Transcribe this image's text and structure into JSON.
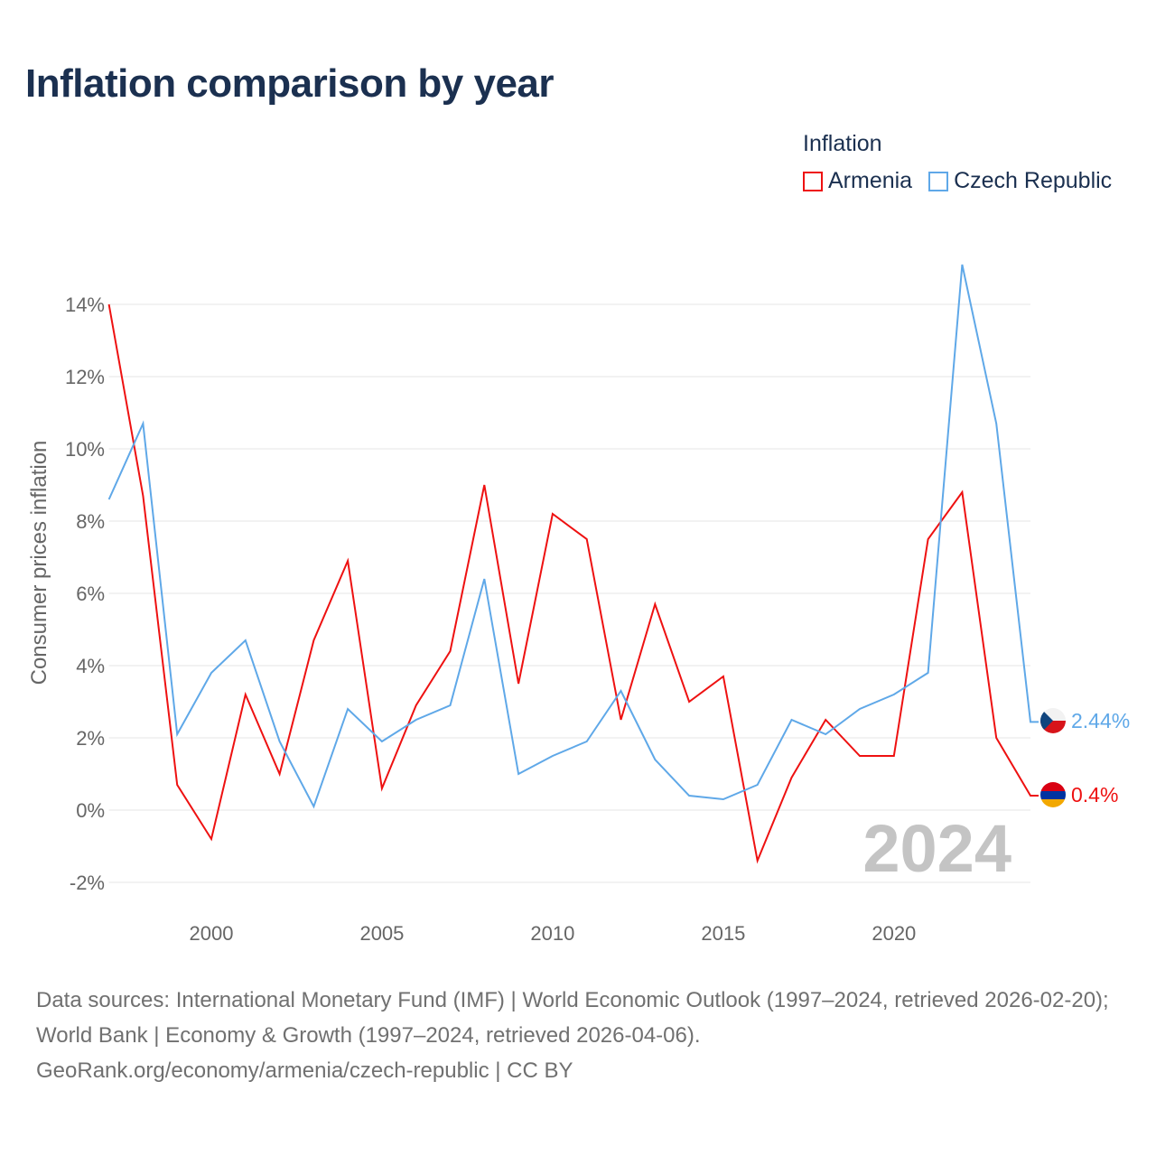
{
  "title": "Inflation comparison by year",
  "legend": {
    "title": "Inflation",
    "items": [
      {
        "name": "Armenia",
        "color": "#ee1111"
      },
      {
        "name": "Czech Republic",
        "color": "#5fa8e8"
      }
    ]
  },
  "chart_data": {
    "type": "line",
    "title": "Inflation comparison by year",
    "xlabel": "",
    "ylabel": "Consumer prices inflation",
    "xlim": [
      1997,
      2024
    ],
    "ylim": [
      -2,
      14
    ],
    "x_ticks": [
      2000,
      2005,
      2010,
      2015,
      2020
    ],
    "y_ticks": [
      -2,
      0,
      2,
      4,
      6,
      8,
      10,
      12,
      14
    ],
    "y_tick_labels": [
      "-2%",
      "0%",
      "2%",
      "4%",
      "6%",
      "8%",
      "10%",
      "12%",
      "14%"
    ],
    "grid": true,
    "legend_position": "top-right",
    "year_watermark": "2024",
    "x": [
      1997,
      1998,
      1999,
      2000,
      2001,
      2002,
      2003,
      2004,
      2005,
      2006,
      2007,
      2008,
      2009,
      2010,
      2011,
      2012,
      2013,
      2014,
      2015,
      2016,
      2017,
      2018,
      2019,
      2020,
      2021,
      2022,
      2023,
      2024
    ],
    "series": [
      {
        "name": "Armenia",
        "color": "#ee1111",
        "end_label": "0.4%",
        "values": [
          14.0,
          8.7,
          0.7,
          -0.8,
          3.2,
          1.0,
          4.7,
          6.9,
          0.6,
          2.9,
          4.4,
          9.0,
          3.5,
          8.2,
          7.5,
          2.5,
          5.7,
          3.0,
          3.7,
          -1.4,
          0.9,
          2.5,
          1.5,
          1.5,
          7.5,
          8.8,
          2.0,
          0.4
        ]
      },
      {
        "name": "Czech Republic",
        "color": "#5fa8e8",
        "end_label": "2.44%",
        "values": [
          8.6,
          10.7,
          2.1,
          3.8,
          4.7,
          1.9,
          0.1,
          2.8,
          1.9,
          2.5,
          2.9,
          6.4,
          1.0,
          1.5,
          1.9,
          3.3,
          1.4,
          0.4,
          0.3,
          0.7,
          2.5,
          2.1,
          2.8,
          3.2,
          3.8,
          15.1,
          10.7,
          2.44
        ]
      }
    ]
  },
  "footer": {
    "sources": "Data sources: International Monetary Fund (IMF) | World Economic Outlook (1997–2024, retrieved 2026-02-20); World Bank | Economy & Growth (1997–2024, retrieved 2026-04-06).",
    "credit": "GeoRank.org/economy/armenia/czech-republic | CC BY"
  }
}
